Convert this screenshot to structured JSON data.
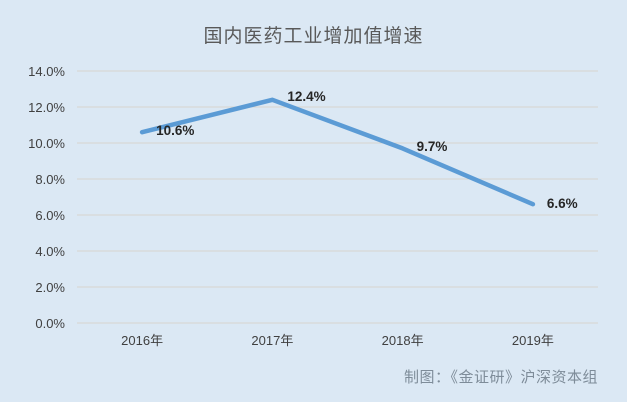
{
  "title": "国内医药工业增加值增速",
  "attribution": "制图：《金证研》沪深资本组",
  "colors": {
    "background": "#dbe8f4",
    "line": "#5b9bd5",
    "grid": "#d7d4ce",
    "title_text": "#595959",
    "axis_text": "#404040",
    "data_label_text": "#262626",
    "attribution_text": "#7e8c99"
  },
  "chart_data": {
    "type": "line",
    "title": "国内医药工业增加值增速",
    "categories": [
      "2016年",
      "2017年",
      "2018年",
      "2019年"
    ],
    "values": [
      10.6,
      12.4,
      9.7,
      6.6
    ],
    "data_labels": [
      "10.6%",
      "12.4%",
      "9.7%",
      "6.6%"
    ],
    "xlabel": "",
    "ylabel": "",
    "ylim": [
      0,
      14
    ],
    "ytick_step": 2,
    "ytick_labels": [
      "0.0%",
      "2.0%",
      "4.0%",
      "6.0%",
      "8.0%",
      "10.0%",
      "12.0%",
      "14.0%"
    ],
    "grid": true,
    "legend_position": "none",
    "data_label_position": "right"
  }
}
